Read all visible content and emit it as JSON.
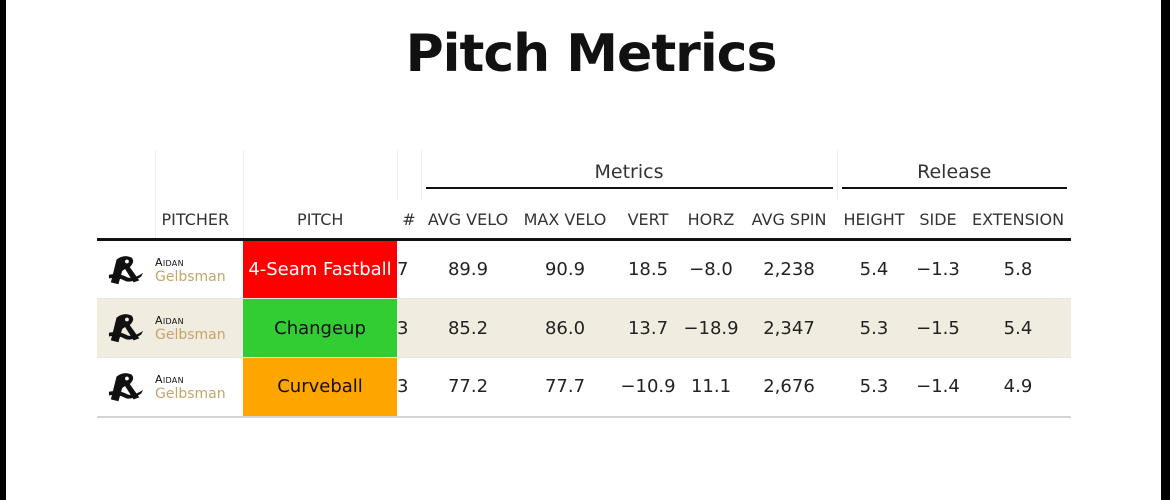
{
  "title": "Pitch Metrics",
  "spanners": {
    "metrics": "Metrics",
    "release": "Release"
  },
  "columns": {
    "pitcher": "PITCHER",
    "pitch": "PITCH",
    "count": "#",
    "avg_velo": "AVG VELO",
    "max_velo": "MAX VELO",
    "vert": "VERT",
    "horz": "HORZ",
    "avg_spin": "AVG SPIN",
    "height": "HEIGHT",
    "side": "SIDE",
    "extension": "EXTENSION"
  },
  "colors": {
    "fastball": "#ff0000",
    "changeup": "#32cd32",
    "curveball": "#ffa500",
    "shaded_row": "#f1ece0",
    "last_name": "#c4a56a"
  },
  "rows": [
    {
      "logo_icon": "team-logo-icon",
      "first_name": "Aidan",
      "last_name": "Gelbsman",
      "pitch": "4-Seam Fastball",
      "count": "7",
      "avg_velo": "89.9",
      "max_velo": "90.9",
      "vert": "18.5",
      "horz": "−8.0",
      "avg_spin": "2,238",
      "height": "5.4",
      "side": "−1.3",
      "extension": "5.8"
    },
    {
      "logo_icon": "team-logo-icon",
      "first_name": "Aidan",
      "last_name": "Gelbsman",
      "pitch": "Changeup",
      "count": "3",
      "avg_velo": "85.2",
      "max_velo": "86.0",
      "vert": "13.7",
      "horz": "−18.9",
      "avg_spin": "2,347",
      "height": "5.3",
      "side": "−1.5",
      "extension": "5.4"
    },
    {
      "logo_icon": "team-logo-icon",
      "first_name": "Aidan",
      "last_name": "Gelbsman",
      "pitch": "Curveball",
      "count": "3",
      "avg_velo": "77.2",
      "max_velo": "77.7",
      "vert": "−10.9",
      "horz": "11.1",
      "avg_spin": "2,676",
      "height": "5.3",
      "side": "−1.4",
      "extension": "4.9"
    }
  ]
}
